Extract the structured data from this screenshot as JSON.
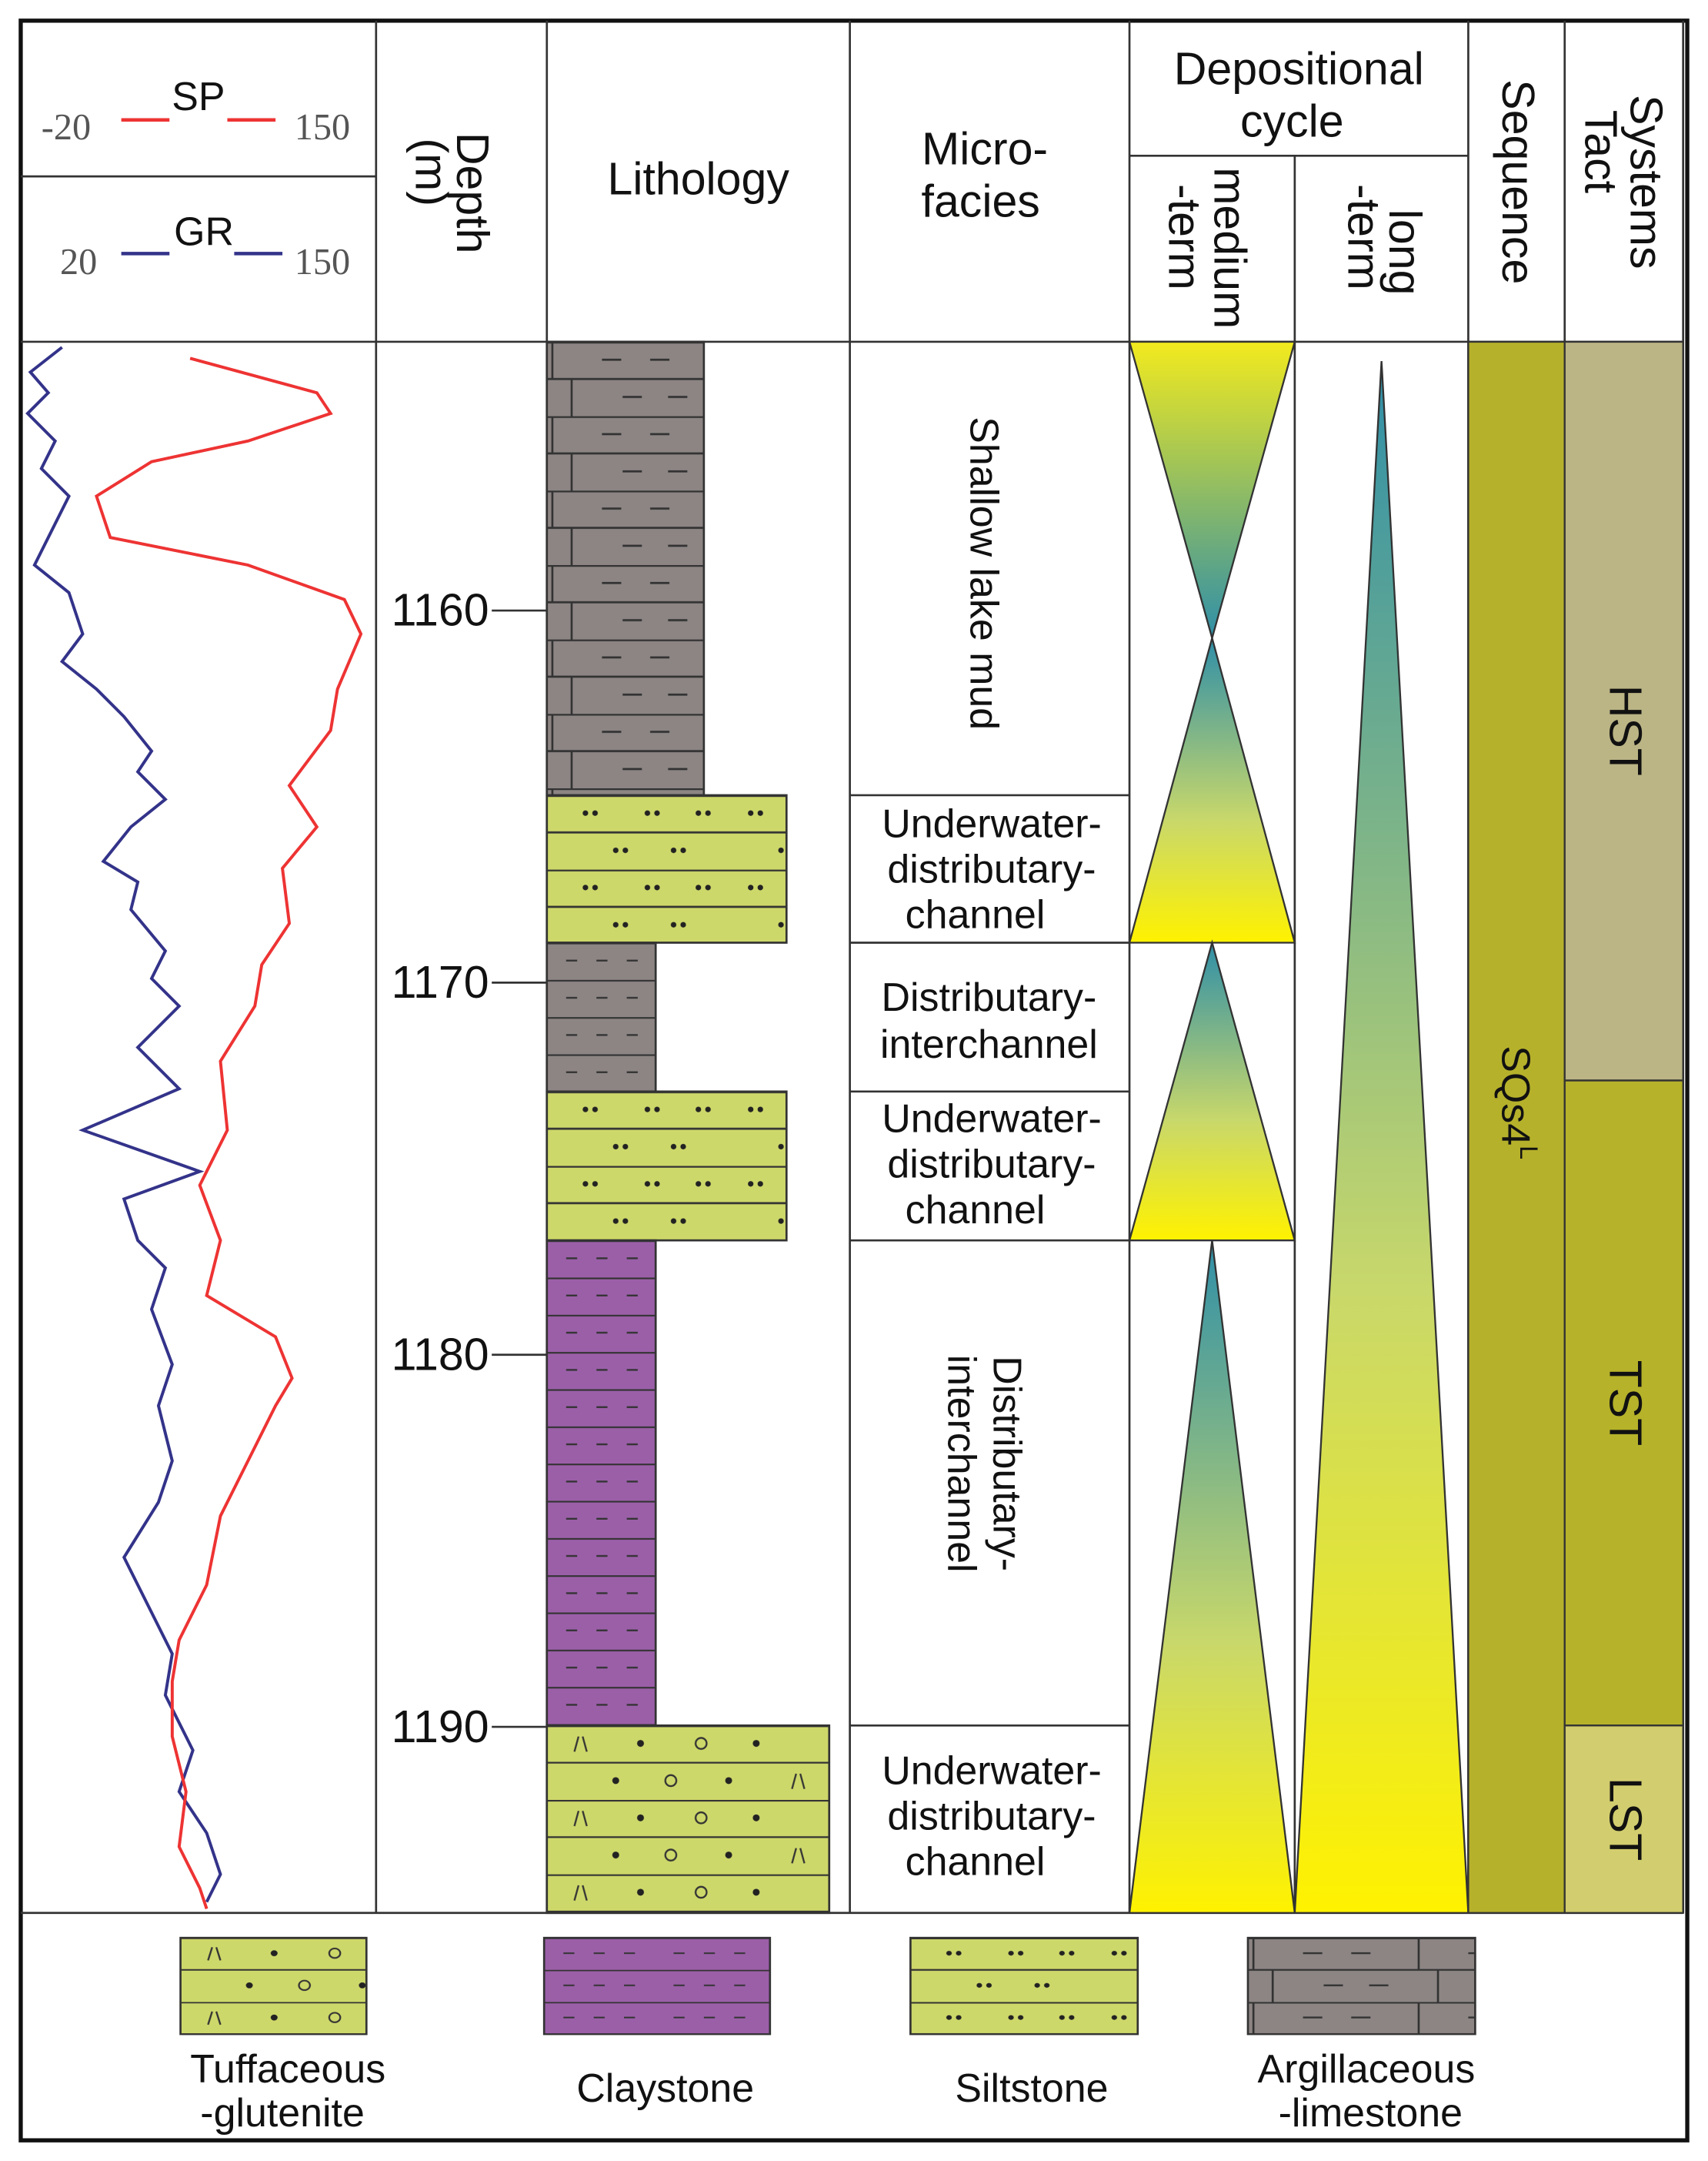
{
  "header": {
    "sp": {
      "name": "SP",
      "min": "-20",
      "max": "150"
    },
    "gr": {
      "name": "GR",
      "min": "20",
      "max": "150"
    },
    "depth": [
      "Depth",
      "(m)"
    ],
    "lithology": "Lithology",
    "microfacies": [
      "Micro-",
      "facies"
    ],
    "depositional_cycle": [
      "Depositional",
      "cycle"
    ],
    "medium_term": [
      "medium",
      "-term"
    ],
    "long_term": [
      "long",
      "-term"
    ],
    "sequence": "Sequence",
    "systems_tract": [
      "Systems",
      "Tact"
    ]
  },
  "depth_ticks": [
    "1160",
    "1170",
    "1180",
    "1190"
  ],
  "microfacies": [
    [
      "Shallow lake mud"
    ],
    [
      "Underwater-",
      "distributary-",
      "channel"
    ],
    [
      "Distributary-",
      "interchannel"
    ],
    [
      "Underwater-",
      "distributary-",
      "channel"
    ],
    [
      "Distributary-",
      "interchannel"
    ],
    [
      "Underwater-",
      "distributary-",
      "channel"
    ]
  ],
  "sequence": {
    "name": "SQs4",
    "superscript": "L"
  },
  "systems_tracts": [
    "HST",
    "TST",
    "LST"
  ],
  "legend": [
    [
      "Tuffaceous",
      "-glutenite"
    ],
    [
      "Claystone"
    ],
    [
      "Siltstone"
    ],
    [
      "Argillaceous",
      "-limestone"
    ]
  ]
}
